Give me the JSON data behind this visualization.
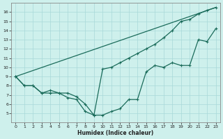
{
  "xlabel": "Humidex (Indice chaleur)",
  "bg_color": "#cef0ec",
  "grid_color": "#a8d8d8",
  "line_color": "#1a6b5a",
  "xlim_min": -0.5,
  "xlim_max": 23.5,
  "ylim_min": 4,
  "ylim_max": 17,
  "x_ticks": [
    0,
    1,
    2,
    3,
    4,
    5,
    6,
    7,
    8,
    9,
    10,
    11,
    12,
    13,
    14,
    15,
    16,
    17,
    18,
    19,
    20,
    21,
    22,
    23
  ],
  "y_ticks": [
    5,
    6,
    7,
    8,
    9,
    10,
    11,
    12,
    13,
    14,
    15,
    16
  ],
  "line1_x": [
    0,
    1,
    2,
    3,
    4,
    5,
    6,
    7,
    8,
    9,
    10,
    11,
    12,
    13,
    14,
    15,
    16,
    17,
    18,
    19,
    20,
    21,
    22,
    23
  ],
  "line1_y": [
    9.0,
    8.0,
    8.0,
    7.2,
    7.2,
    7.2,
    6.7,
    6.5,
    5.2,
    4.8,
    4.8,
    5.2,
    5.5,
    6.5,
    6.5,
    9.5,
    10.2,
    10.0,
    10.5,
    10.2,
    10.2,
    13.0,
    12.8,
    14.2
  ],
  "line2_x": [
    0,
    1,
    2,
    3,
    4,
    5,
    6,
    7,
    8,
    9,
    10,
    11,
    12,
    13,
    14,
    15,
    16,
    17,
    18,
    19,
    20,
    21,
    22,
    23
  ],
  "line2_y": [
    9.0,
    8.0,
    8.0,
    7.2,
    7.5,
    7.2,
    7.2,
    6.8,
    6.0,
    4.8,
    9.8,
    10.0,
    10.5,
    11.0,
    11.5,
    12.0,
    12.5,
    13.2,
    14.0,
    15.0,
    15.2,
    15.8,
    16.2,
    16.5
  ],
  "line3_x": [
    0,
    23
  ],
  "line3_y": [
    9.0,
    16.5
  ]
}
